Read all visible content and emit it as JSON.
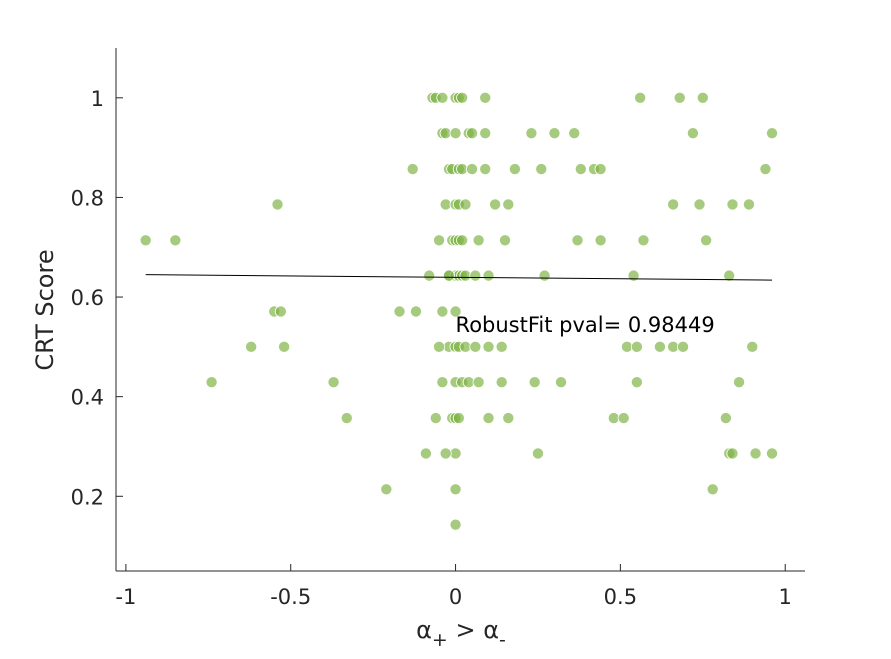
{
  "chart_data": {
    "type": "scatter",
    "title": "",
    "xlabel_parts": {
      "base1": "α",
      "sub1": "+",
      "op": " > ",
      "base2": "α",
      "sub2": "-"
    },
    "ylabel": "CRT Score",
    "xlim": [
      -1.03,
      1.06
    ],
    "ylim": [
      0.05,
      1.1
    ],
    "xticks": [
      -1,
      -0.5,
      0,
      0.5,
      1
    ],
    "xtick_labels": [
      "-1",
      "-0.5",
      "0",
      "0.5",
      "1"
    ],
    "yticks": [
      0.2,
      0.4,
      0.6,
      0.8,
      1
    ],
    "ytick_labels": [
      "0.2",
      "0.4",
      "0.6",
      "0.8",
      "1"
    ],
    "grid": false,
    "point_color": "#7cb342",
    "fit_line_color": "#000000",
    "fit_line": {
      "x": [
        -0.94,
        0.96
      ],
      "y": [
        0.645,
        0.634
      ]
    },
    "annotation": "RobustFit pval= 0.98449",
    "annotation_pos": {
      "x": 0.0,
      "y": 0.55
    },
    "points": [
      [
        -0.94,
        0.714
      ],
      [
        -0.85,
        0.714
      ],
      [
        -0.74,
        0.429
      ],
      [
        -0.62,
        0.5
      ],
      [
        -0.55,
        0.571
      ],
      [
        -0.53,
        0.571
      ],
      [
        -0.54,
        0.786
      ],
      [
        -0.52,
        0.5
      ],
      [
        -0.37,
        0.429
      ],
      [
        -0.33,
        0.357
      ],
      [
        -0.21,
        0.214
      ],
      [
        -0.17,
        0.571
      ],
      [
        -0.12,
        0.571
      ],
      [
        -0.13,
        0.857
      ],
      [
        -0.09,
        0.286
      ],
      [
        -0.08,
        0.643
      ],
      [
        -0.07,
        1.0
      ],
      [
        -0.06,
        1.0
      ],
      [
        -0.04,
        1.0
      ],
      [
        -0.05,
        0.714
      ],
      [
        -0.04,
        0.929
      ],
      [
        -0.03,
        0.786
      ],
      [
        -0.03,
        0.929
      ],
      [
        -0.02,
        0.857
      ],
      [
        -0.02,
        0.643
      ],
      [
        -0.02,
        0.5
      ],
      [
        -0.01,
        0.714
      ],
      [
        -0.01,
        0.857
      ],
      [
        0.0,
        1.0
      ],
      [
        0.01,
        1.0
      ],
      [
        0.02,
        1.0
      ],
      [
        0.0,
        0.929
      ],
      [
        0.01,
        0.857
      ],
      [
        0.02,
        0.857
      ],
      [
        0.0,
        0.786
      ],
      [
        0.01,
        0.786
      ],
      [
        0.03,
        0.786
      ],
      [
        0.0,
        0.714
      ],
      [
        0.01,
        0.714
      ],
      [
        0.02,
        0.714
      ],
      [
        0.0,
        0.643
      ],
      [
        0.01,
        0.643
      ],
      [
        0.02,
        0.643
      ],
      [
        0.03,
        0.643
      ],
      [
        0.0,
        0.571
      ],
      [
        0.0,
        0.5
      ],
      [
        0.01,
        0.5
      ],
      [
        0.03,
        0.5
      ],
      [
        0.0,
        0.429
      ],
      [
        0.02,
        0.429
      ],
      [
        0.04,
        0.429
      ],
      [
        -0.01,
        0.357
      ],
      [
        0.0,
        0.357
      ],
      [
        0.01,
        0.357
      ],
      [
        0.0,
        0.286
      ],
      [
        0.0,
        0.214
      ],
      [
        0.0,
        0.143
      ],
      [
        -0.05,
        0.5
      ],
      [
        -0.04,
        0.571
      ],
      [
        -0.04,
        0.429
      ],
      [
        -0.06,
        0.357
      ],
      [
        -0.03,
        0.286
      ],
      [
        -0.02,
        0.643
      ],
      [
        0.04,
        0.929
      ],
      [
        0.05,
        0.929
      ],
      [
        0.05,
        0.857
      ],
      [
        0.06,
        0.5
      ],
      [
        0.06,
        0.643
      ],
      [
        0.07,
        0.714
      ],
      [
        0.07,
        0.429
      ],
      [
        0.09,
        0.857
      ],
      [
        0.09,
        0.929
      ],
      [
        0.09,
        1.0
      ],
      [
        0.1,
        0.643
      ],
      [
        0.1,
        0.5
      ],
      [
        0.1,
        0.357
      ],
      [
        0.12,
        0.786
      ],
      [
        0.14,
        0.5
      ],
      [
        0.14,
        0.429
      ],
      [
        0.15,
        0.714
      ],
      [
        0.16,
        0.786
      ],
      [
        0.16,
        0.357
      ],
      [
        0.18,
        0.857
      ],
      [
        0.23,
        0.929
      ],
      [
        0.24,
        0.429
      ],
      [
        0.25,
        0.286
      ],
      [
        0.26,
        0.857
      ],
      [
        0.27,
        0.643
      ],
      [
        0.3,
        0.929
      ],
      [
        0.32,
        0.429
      ],
      [
        0.36,
        0.929
      ],
      [
        0.37,
        0.714
      ],
      [
        0.38,
        0.857
      ],
      [
        0.42,
        0.857
      ],
      [
        0.44,
        0.857
      ],
      [
        0.44,
        0.714
      ],
      [
        0.48,
        0.357
      ],
      [
        0.51,
        0.357
      ],
      [
        0.52,
        0.5
      ],
      [
        0.54,
        0.643
      ],
      [
        0.55,
        0.429
      ],
      [
        0.56,
        1.0
      ],
      [
        0.57,
        0.714
      ],
      [
        0.55,
        0.5
      ],
      [
        0.62,
        0.5
      ],
      [
        0.66,
        0.786
      ],
      [
        0.66,
        0.5
      ],
      [
        0.68,
        1.0
      ],
      [
        0.69,
        0.5
      ],
      [
        0.72,
        0.929
      ],
      [
        0.74,
        0.786
      ],
      [
        0.75,
        1.0
      ],
      [
        0.76,
        0.714
      ],
      [
        0.78,
        0.214
      ],
      [
        0.82,
        0.357
      ],
      [
        0.83,
        0.643
      ],
      [
        0.83,
        0.286
      ],
      [
        0.84,
        0.286
      ],
      [
        0.84,
        0.786
      ],
      [
        0.86,
        0.429
      ],
      [
        0.89,
        0.786
      ],
      [
        0.9,
        0.5
      ],
      [
        0.91,
        0.286
      ],
      [
        0.94,
        0.857
      ],
      [
        0.96,
        0.929
      ],
      [
        0.96,
        0.286
      ]
    ]
  }
}
